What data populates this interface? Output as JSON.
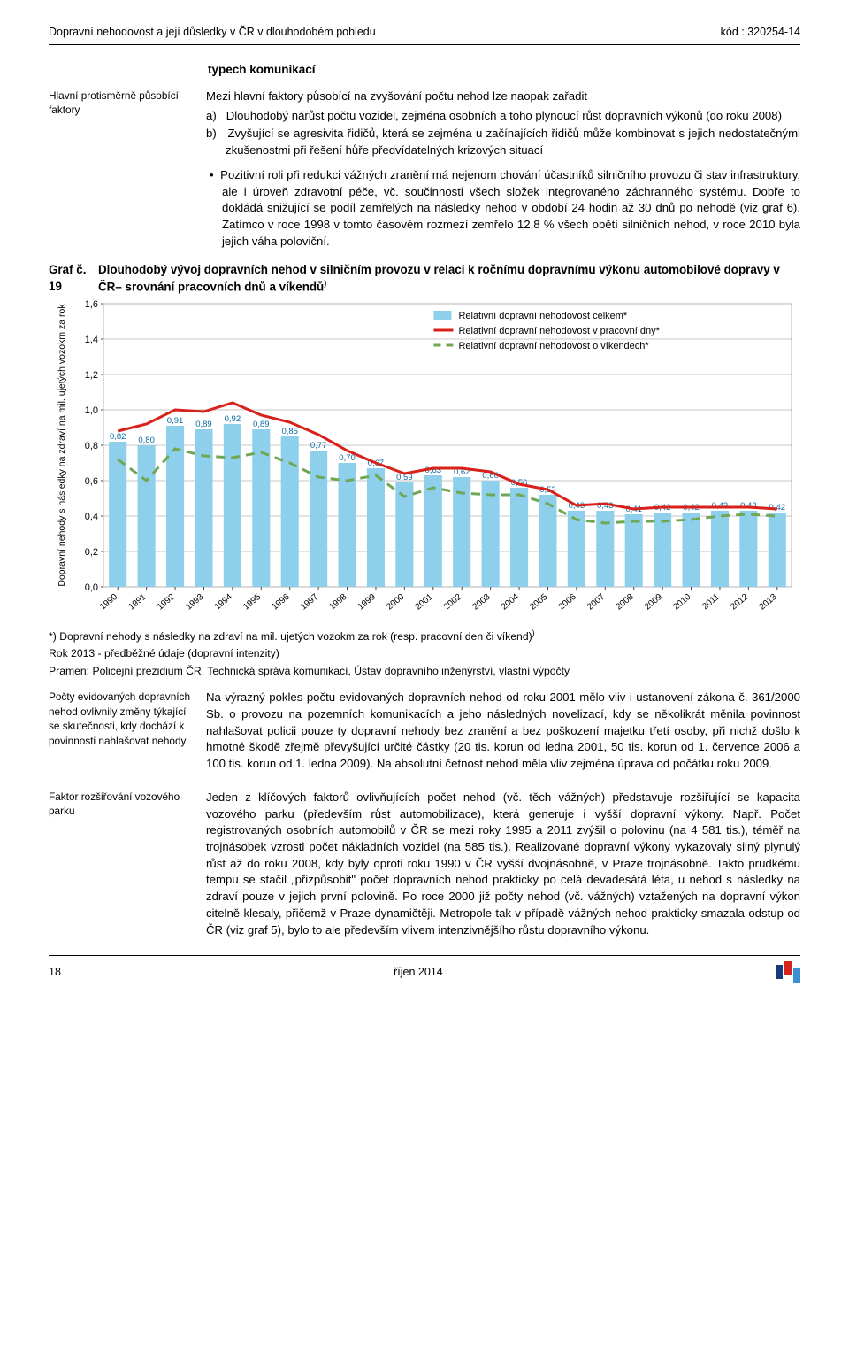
{
  "top": {
    "left": "Dopravní nehodovost a její důsledky v ČR v dlouhodobém pohledu",
    "right": "kód : 320254-14"
  },
  "sec_head": "typech komunikací",
  "margin1": "Hlavní protisměrně působící faktory",
  "para_intro": "Mezi hlavní faktory působící na zvyšování počtu nehod lze naopak zařadit",
  "list_a": "a)   Dlouhodobý nárůst počtu vozidel, zejména osobních a toho plynoucí růst dopravních výkonů (do roku 2008)",
  "list_b": "b)   Zvyšující se agresivita řidičů, která se zejména u začínajících řidičů může kombinovat s jejich nedostatečnými zkušenostmi při řešení hůře předvídatelných krizových situací",
  "bullet1": "•  Pozitivní roli při redukci vážných zranění má nejenom chování účastníků silničního provozu či stav infrastruktury, ale i úroveň zdravotní péče, vč. součinnosti všech složek integrovaného záchranného systému. Dobře to dokládá snižující se podíl zemřelých na následky nehod v období 24 hodin až 30 dnů po nehodě (viz graf 6). Zatímco v roce 1998 v tomto časovém rozmezí zemřelo 12,8 % všech obětí silničních nehod, v roce 2010 byla jejich váha poloviční.",
  "graf_no": "Graf č. 19",
  "graf_title": "Dlouhodobý vývoj dopravních nehod v silničním provozu v relaci k ročnímu dopravnímu výkonu automobilové dopravy v ČR– srovnání pracovních dnů a víkendů",
  "chart": {
    "type": "bar",
    "y_ticks": [
      0.0,
      0.2,
      0.4,
      0.6,
      0.8,
      1.0,
      1.2,
      1.4,
      1.6
    ],
    "y_labels": [
      "0,0",
      "0,2",
      "0,4",
      "0,6",
      "0,8",
      "1,0",
      "1,2",
      "1,4",
      "1,6"
    ],
    "years": [
      "1990",
      "1991",
      "1992",
      "1993",
      "1994",
      "1995",
      "1996",
      "1997",
      "1998",
      "1999",
      "2000",
      "2001",
      "2002",
      "2003",
      "2004",
      "2005",
      "2006",
      "2007",
      "2008",
      "2009",
      "2010",
      "2011",
      "2012",
      "2013"
    ],
    "bars": [
      0.82,
      0.8,
      0.91,
      0.89,
      0.92,
      0.89,
      0.85,
      0.77,
      0.7,
      0.67,
      0.59,
      0.63,
      0.62,
      0.6,
      0.56,
      0.52,
      0.43,
      0.43,
      0.41,
      0.42,
      0.42,
      0.43,
      0.43,
      0.42
    ],
    "bar_labels": [
      "0,82",
      "0,80",
      "0,91",
      "0,89",
      "0,92",
      "0,89",
      "0,85",
      "0,77",
      "0,70",
      "0,67",
      "0,59",
      "0,63",
      "0,62",
      "0,60",
      "0,56",
      "0,52",
      "0,43",
      "0,43",
      "0,41",
      "0,42",
      "0,42",
      "0,43",
      "0,43",
      "0,42"
    ],
    "red_line": [
      0.88,
      0.92,
      1.0,
      0.99,
      1.04,
      0.97,
      0.93,
      0.86,
      0.77,
      0.7,
      0.64,
      0.67,
      0.67,
      0.65,
      0.58,
      0.55,
      0.46,
      0.47,
      0.44,
      0.45,
      0.45,
      0.45,
      0.45,
      0.44
    ],
    "green_line": [
      0.72,
      0.6,
      0.78,
      0.74,
      0.73,
      0.76,
      0.7,
      0.62,
      0.6,
      0.63,
      0.51,
      0.56,
      0.53,
      0.52,
      0.52,
      0.47,
      0.38,
      0.36,
      0.37,
      0.37,
      0.38,
      0.4,
      0.41,
      0.4
    ],
    "bar_color": "#8ed0ec",
    "red_color": "#d8211a",
    "green_color": "#6fa754",
    "grid_color": "#b5b5b5",
    "bg": "#ffffff",
    "legend": {
      "s1": "Relativní dopravní nehodovost celkem*",
      "s2": "Relativní dopravní nehodovost v pracovní dny*",
      "s3": "Relativní dopravní nehodovost o víkendech*"
    },
    "y_axis_label": "Dopravní nehody s následky na zdraví na mil. ujetých vozokm za rok"
  },
  "note_star": "*) Dopravní nehody s následky na zdraví na mil. ujetých vozokm za rok (resp. pracovní den či víkend)",
  "note_rok": "Rok 2013 - předběžné údaje (dopravní intenzity)",
  "note_pramen": "Pramen: Policejní prezidium ČR, Technická správa komunikací, Ústav dopravního inženýrství, vlastní výpočty",
  "margin2": "Počty evidovaných dopravních nehod ovlivnily změny týkající se skutečnosti, kdy dochází k povinnosti nahlašovat nehody",
  "para2": "Na výrazný pokles počtu evidovaných dopravních nehod od roku 2001 mělo vliv i ustanovení zákona č. 361/2000 Sb. o provozu na pozemních komunikacích a jeho následných novelizací, kdy se několikrát měnila povinnost nahlašovat policii pouze ty dopravní nehody bez zranění a bez poškození majetku třetí osoby, při nichž došlo k hmotné škodě zřejmě převyšující určité částky (20 tis. korun od ledna 2001, 50 tis. korun od 1. července 2006 a 100 tis. korun od 1. ledna 2009). Na absolutní četnost nehod měla vliv zejména úprava od počátku roku 2009.",
  "margin3": "Faktor rozšiřování vozového parku",
  "para3": "Jeden z klíčových faktorů ovlivňujících počet nehod (vč. těch vážných) představuje rozšiřující se kapacita vozového parku (především růst automobilizace), která generuje i vyšší dopravní výkony. Např. Počet registrovaných osobních automobilů v ČR se mezi roky 1995 a 2011 zvýšil o polovinu (na 4 581 tis.), téměř na trojnásobek vzrostl počet nákladních vozidel (na 585 tis.). Realizované dopravní výkony vykazovaly silný plynulý růst až do roku 2008, kdy byly oproti roku 1990 v ČR vyšší dvojnásobně, v Praze trojnásobně. Takto prudkému tempu se stačil „přizpůsobit\" počet dopravních nehod prakticky po celá devadesátá léta, u nehod s následky na zdraví pouze v jejich první polovině. Po roce 2000 již počty nehod (vč. vážných) vztažených na dopravní výkon citelně klesaly, přičemž v Praze dynamičtěji. Metropole tak v případě vážných nehod prakticky smazala odstup od ČR (viz graf 5), bylo to ale především vlivem intenzivnějšího růstu dopravního výkonu.",
  "footer": {
    "page": "18",
    "center": "říjen 2014"
  }
}
